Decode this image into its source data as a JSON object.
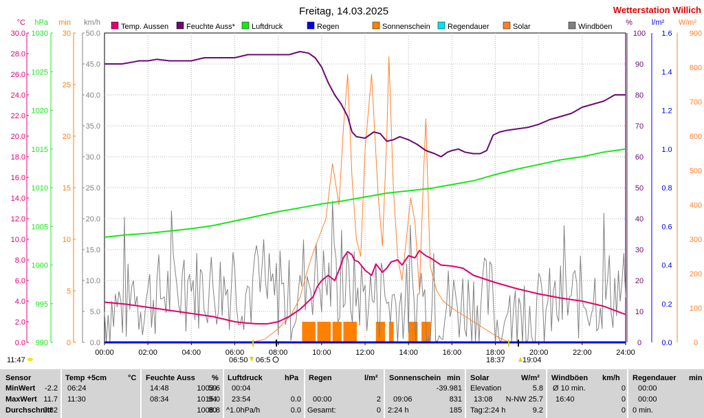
{
  "header": {
    "title": "Freitag, 14.03.2025",
    "station": "Wetterstation Willich",
    "station_color": "#e00000"
  },
  "time_labels": [
    "00:00",
    "02:00",
    "04:00",
    "06:00",
    "08:00",
    "10:00",
    "12:00",
    "14:00",
    "16:00",
    "18:00",
    "20:00",
    "22:00",
    "24:00"
  ],
  "left_axis_units": [
    "°C",
    "hPa",
    "min",
    "km/h"
  ],
  "right_axis_units": [
    "%",
    "l/m²",
    "W/m²"
  ],
  "legend": [
    {
      "label": "Temp. Aussen",
      "color": "#e0006f"
    },
    {
      "label": "Feuchte Auss*",
      "color": "#6a0a6f"
    },
    {
      "label": "Luftdruck",
      "color": "#19e619"
    },
    {
      "label": "Regen",
      "color": "#0000e6"
    },
    {
      "label": "Sonnenschein",
      "color": "#ff8000"
    },
    {
      "label": "Regendauer",
      "color": "#00e6e6"
    },
    {
      "label": "Solar",
      "color": "#ff7f2a"
    },
    {
      "label": "Windböen",
      "color": "#808080"
    }
  ],
  "bottom_left": {
    "time": "11:47"
  },
  "sun_markers": {
    "sunrise_civil": "06:50",
    "sunrise": "06:5",
    "sunset_civil": "18:37",
    "sunset": "19:04"
  },
  "stats": {
    "sensor": {
      "title": "Sensor",
      "rows": [
        "MinWert",
        "MaxWert",
        "Durchschnitt"
      ]
    },
    "temp": {
      "title": "Temp +5cm",
      "unit": "°C",
      "rows": [
        [
          "06:24",
          "-2.2"
        ],
        [
          "11:30",
          "11.7"
        ],
        [
          "",
          "0.82"
        ]
      ]
    },
    "humidity": {
      "title": "Feuchte Auss",
      "unit": "%",
      "rows": [
        [
          "14:48",
          "59"
        ],
        [
          "08:34",
          "94"
        ],
        [
          "",
          "80"
        ]
      ]
    },
    "pressure": {
      "title": "Luftdruck",
      "unit": "hPa",
      "rows": [
        [
          "00:04",
          "1003.6"
        ],
        [
          "23:54",
          "1015.0"
        ],
        [
          "^1.0hPa/h",
          "1008.8"
        ]
      ]
    },
    "rain": {
      "title": "Regen",
      "unit": "l/m²",
      "rows": [
        [
          "",
          ""
        ],
        [
          "00:00",
          "0.0"
        ],
        [
          "Gesamt:",
          "0.0"
        ]
      ]
    },
    "sunshine": {
      "title": "Sonnenschein",
      "unit": "min",
      "rows": [
        [
          "",
          ""
        ],
        [
          "09:06",
          "2"
        ],
        [
          "2:24 h",
          "0"
        ]
      ]
    },
    "solar": {
      "title": "Solar",
      "unit": "W/m²",
      "rows": [
        [
          "Elevation",
          "-39.981"
        ],
        [
          "13:08",
          "831"
        ],
        [
          "Tag:2:24 h",
          "185"
        ]
      ]
    },
    "gust": {
      "title": "Windböen",
      "unit": "km/h",
      "rows": [
        [
          "Ø 10 min.",
          "5.8"
        ],
        [
          "16:40",
          "N-NW 25.7"
        ],
        [
          "",
          "9.2"
        ]
      ]
    },
    "raindur": {
      "title": "Regendauer",
      "unit": "min",
      "rows": [
        [
          "00:00",
          "0"
        ],
        [
          "00:00",
          "0"
        ],
        [
          "0 min.",
          "0"
        ]
      ]
    }
  },
  "chart_data": {
    "type": "line",
    "title": "Freitag, 14.03.2025",
    "x_range_hours": [
      0,
      24
    ],
    "grid": true,
    "legend_placement": "top",
    "axes": {
      "temp_c": {
        "range": [
          0,
          30
        ],
        "ticks": [
          "0.0",
          "2.0",
          "4.0",
          "6.0",
          "8.0",
          "10.0",
          "12.0",
          "14.0",
          "16.0",
          "18.0",
          "20.0",
          "22.0",
          "24.0",
          "26.0",
          "28.0",
          "30.0"
        ],
        "color": "#e0006f"
      },
      "pressure_hpa": {
        "range": [
          990,
          1030
        ],
        "ticks": [
          "990",
          "995",
          "1000",
          "1005",
          "1010",
          "1015",
          "1020",
          "1025",
          "1030"
        ],
        "color": "#19e619"
      },
      "sunshine_min": {
        "range": [
          0,
          30
        ],
        "ticks": [
          "0",
          "5",
          "10",
          "15",
          "20",
          "25",
          "30"
        ],
        "color": "#ff8000"
      },
      "wind_kmh": {
        "range": [
          0,
          50
        ],
        "ticks": [
          "0.0",
          "5.0",
          "10.0",
          "15.0",
          "20.0",
          "25.0",
          "30.0",
          "35.0",
          "40.0",
          "45.0",
          "50.0"
        ],
        "color": "#808080"
      },
      "humidity_pct": {
        "range": [
          0,
          100
        ],
        "ticks": [
          "0",
          "10",
          "20",
          "30",
          "40",
          "50",
          "60",
          "70",
          "80",
          "90",
          "100"
        ],
        "color": "#6a0a6f"
      },
      "rain_lm2": {
        "range": [
          0,
          1.6
        ],
        "ticks": [
          "0.0",
          "0.2",
          "0.4",
          "0.6",
          "0.8",
          "1.0",
          "1.2",
          "1.4",
          "1.6"
        ],
        "color": "#0000e6"
      },
      "solar_wm2": {
        "range": [
          0,
          900
        ],
        "ticks": [
          "0",
          "100",
          "200",
          "300",
          "400",
          "500",
          "600",
          "700",
          "800",
          "900"
        ],
        "color": "#ff7f2a"
      }
    },
    "series": [
      {
        "name": "Temp. Aussen",
        "axis": "temp_c",
        "color": "#e0006f",
        "x": [
          0,
          1,
          2,
          3,
          4,
          5,
          6,
          6.4,
          7,
          7.5,
          8,
          8.5,
          9,
          9.3,
          9.6,
          9.8,
          10,
          10.3,
          10.6,
          10.8,
          11,
          11.2,
          11.4,
          11.5,
          11.7,
          12,
          12.3,
          12.5,
          12.8,
          13,
          13.2,
          13.5,
          13.7,
          14,
          14.3,
          14.5,
          14.8,
          15,
          15.5,
          16,
          16.5,
          17,
          18,
          19,
          20,
          21,
          22,
          23,
          24
        ],
        "y": [
          3.9,
          3.7,
          3.4,
          3.1,
          2.8,
          2.5,
          2.0,
          1.9,
          1.8,
          1.8,
          2.0,
          2.5,
          3.2,
          3.8,
          4.4,
          5.4,
          6.0,
          6.5,
          6.0,
          7.0,
          8.2,
          8.8,
          8.5,
          8.0,
          7.8,
          7.0,
          6.5,
          7.6,
          6.8,
          7.2,
          7.8,
          8.0,
          7.5,
          8.4,
          8.2,
          8.9,
          8.4,
          8.2,
          7.5,
          7.4,
          7.2,
          6.5,
          5.8,
          5.2,
          4.7,
          4.3,
          4.0,
          3.5,
          2.7
        ]
      },
      {
        "name": "Feuchte Auss*",
        "axis": "humidity_pct",
        "color": "#6a0a6f",
        "x": [
          0,
          0.8,
          1.2,
          1.6,
          2,
          2.4,
          3,
          4,
          4.6,
          6,
          6.6,
          8,
          8.5,
          9,
          9.4,
          9.7,
          10,
          10.3,
          10.6,
          10.9,
          11.2,
          11.4,
          11.6,
          12,
          12.4,
          12.7,
          13,
          13.3,
          13.6,
          14,
          14.4,
          14.8,
          15.2,
          15.5,
          15.8,
          16,
          16.3,
          16.6,
          17,
          17.3,
          17.6,
          17.9,
          18.2,
          18.5,
          19,
          19.5,
          20,
          20.5,
          21,
          21.5,
          22,
          22.5,
          23,
          23.5,
          24
        ],
        "y": [
          90,
          90,
          90.5,
          91,
          91,
          91.5,
          91,
          91,
          92,
          92,
          93,
          93,
          93,
          94,
          93.5,
          92,
          89,
          84,
          80,
          77,
          73,
          68,
          66.5,
          66,
          68,
          67.5,
          65,
          65.5,
          66.5,
          65.5,
          64,
          62,
          61,
          60,
          61.5,
          62,
          62.5,
          61.5,
          61,
          61,
          62,
          67,
          68,
          68.5,
          69,
          69.5,
          70.5,
          72,
          73,
          74,
          76,
          77,
          78,
          80,
          80
        ]
      },
      {
        "name": "Luftdruck",
        "axis": "pressure_hpa",
        "color": "#19e619",
        "x": [
          0,
          1,
          2,
          3,
          4,
          5,
          6,
          7,
          8,
          9,
          10,
          11,
          12,
          13,
          14,
          15,
          16,
          17,
          18,
          19,
          20,
          21,
          22,
          23,
          24
        ],
        "y": [
          1003.6,
          1003.9,
          1004.1,
          1004.4,
          1004.7,
          1005.1,
          1005.7,
          1006.3,
          1006.9,
          1007.4,
          1007.9,
          1008.3,
          1008.8,
          1009.3,
          1009.6,
          1009.9,
          1010.4,
          1010.9,
          1011.7,
          1012.4,
          1013.0,
          1013.6,
          1014.0,
          1014.6,
          1015.0
        ]
      },
      {
        "name": "Solar",
        "axis": "solar_wm2",
        "color": "#ff7f2a",
        "x": [
          0,
          6.8,
          7.4,
          8,
          8.6,
          9,
          9.3,
          9.6,
          9.9,
          10.2,
          10.5,
          10.8,
          11,
          11.2,
          11.4,
          11.6,
          11.8,
          12,
          12.3,
          12.6,
          12.8,
          13.0,
          13.1,
          13.3,
          13.5,
          13.7,
          13.9,
          14.1,
          14.3,
          14.5,
          14.7,
          14.8,
          15,
          15.3,
          15.6,
          16,
          16.5,
          17,
          17.5,
          18,
          18.6,
          24
        ],
        "y": [
          0,
          0,
          10,
          40,
          80,
          130,
          200,
          260,
          310,
          360,
          520,
          400,
          620,
          780,
          480,
          300,
          250,
          560,
          780,
          430,
          280,
          600,
          831,
          450,
          250,
          180,
          300,
          420,
          350,
          150,
          500,
          650,
          220,
          150,
          120,
          100,
          80,
          60,
          40,
          20,
          0,
          0
        ]
      },
      {
        "name": "Windböen",
        "axis": "wind_kmh",
        "color": "#808080",
        "samples": 288,
        "mean": 9.2,
        "max": 25.7
      },
      {
        "name": "Regen",
        "axis": "rain_lm2",
        "color": "#0000e6",
        "x": [
          0,
          24
        ],
        "y": [
          0,
          0
        ]
      }
    ],
    "sunshine_bars": {
      "name": "Sonnenschein",
      "axis": "sunshine_min",
      "color": "#ff8000",
      "x": [
        9.1,
        9.3,
        9.5,
        9.8,
        10,
        10.2,
        10.5,
        10.7,
        11,
        11.2,
        11.4,
        12.5,
        12.7,
        13.1,
        14,
        14.2,
        14.6,
        14.8
      ],
      "y": [
        2,
        2,
        2,
        2,
        2,
        2,
        2,
        2,
        2,
        2,
        2,
        2,
        2,
        2,
        2,
        2,
        2,
        2
      ]
    }
  }
}
